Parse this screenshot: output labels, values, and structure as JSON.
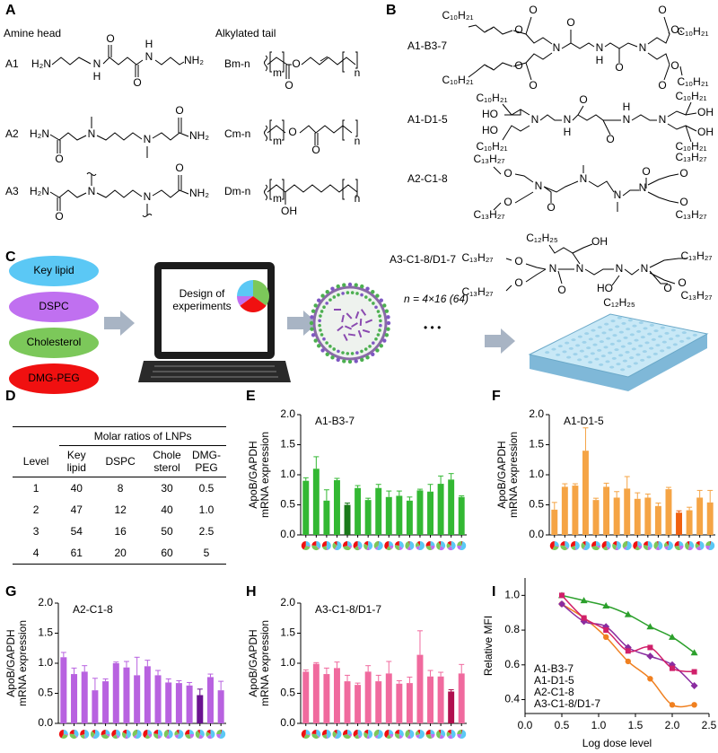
{
  "panel_a": {
    "label": "A",
    "head_title": "Amine head",
    "tail_title": "Alkylated tail",
    "heads": [
      {
        "name": "A1",
        "atoms": [
          "H₂N",
          "N",
          "H",
          "O",
          "O",
          "N",
          "H",
          "NH₂"
        ]
      },
      {
        "name": "A2",
        "atoms": [
          "H₂N",
          "O",
          "N",
          "N",
          "O",
          "NH₂"
        ]
      },
      {
        "name": "A3",
        "atoms": [
          "H₂N",
          "O",
          "N",
          "N",
          "O",
          "NH₂"
        ]
      }
    ],
    "tails": [
      {
        "name": "Bm-n",
        "atoms": [
          "m",
          "O",
          "O",
          "n"
        ]
      },
      {
        "name": "Cm-n",
        "atoms": [
          "m",
          "O",
          "O",
          "n"
        ]
      },
      {
        "name": "Dm-n",
        "atoms": [
          "m",
          "OH",
          "n"
        ]
      }
    ]
  },
  "panel_b": {
    "label": "B",
    "lipids": [
      {
        "name": "A1-B3-7",
        "color": "#2ca02c",
        "atoms": [
          "C₁₀H₂₁",
          "O",
          "O",
          "N",
          "O",
          "N",
          "H",
          "O",
          "N",
          "O",
          "O",
          "C₁₀H₂₁",
          "O",
          "O",
          "C₁₀H₂₁",
          "O",
          "O",
          "C₁₀H₂₁"
        ]
      },
      {
        "name": "A1-D1-5",
        "color": "#f08020",
        "atoms": [
          "C₁₀H₂₁",
          "HO",
          "N",
          "HO",
          "C₁₀H₂₁",
          "N",
          "H",
          "O",
          "O",
          "N",
          "H",
          "N",
          "OH",
          "OH",
          "C₁₀H₂₁",
          "C₁₀H₂₁"
        ]
      },
      {
        "name": "A2-C1-8",
        "color": "#8a2ca0",
        "atoms": [
          "C₁₃H₂₇",
          "O",
          "N",
          "O",
          "C₁₃H₂₇",
          "O",
          "N",
          "N",
          "O",
          "N",
          "O",
          "C₁₃H₂₇",
          "O",
          "C₁₃H₂₇"
        ]
      },
      {
        "name": "A3-C1-8/D1-7",
        "color": "#d0206a",
        "atoms": [
          "C₁₂H₂₅",
          "OH",
          "C₁₃H₂₇",
          "O",
          "N",
          "O",
          "C₁₃H₂₇",
          "O",
          "N",
          "N",
          "HO",
          "C₁₂H₂₅",
          "N",
          "O",
          "C₁₃H₂₇",
          "O",
          "C₁₃H₂₇"
        ]
      }
    ]
  },
  "panel_c": {
    "label": "C",
    "components": [
      "Key lipid",
      "DSPC",
      "Cholesterol",
      "DMG-PEG"
    ],
    "screen_text": "Design of experiments",
    "count_text": "n = 4×16 (64)",
    "ellipsis": "• • •"
  },
  "panel_d": {
    "label": "D",
    "group_header": "Molar ratios of LNPs",
    "columns": [
      "Level",
      "Key lipid",
      "DSPC",
      "Chole sterol",
      "DMG-PEG"
    ],
    "rows": [
      [
        "1",
        "40",
        "8",
        "30",
        "0.5"
      ],
      [
        "2",
        "47",
        "12",
        "40",
        "1.0"
      ],
      [
        "3",
        "54",
        "16",
        "50",
        "2.5"
      ],
      [
        "4",
        "61",
        "20",
        "60",
        "5"
      ]
    ]
  },
  "chart_data": [
    {
      "type": "bar",
      "label": "E",
      "title": "A1-B3-7",
      "y_label": [
        "ApoB/GAPDH",
        "mRNA expression"
      ],
      "color": "#2ca02c",
      "categories": [
        null,
        null,
        null,
        null,
        null,
        null,
        null,
        null,
        null,
        null,
        null,
        null,
        null,
        null,
        null,
        null
      ],
      "values": [
        0.9,
        1.1,
        0.57,
        0.91,
        0.5,
        0.78,
        0.58,
        0.78,
        0.63,
        0.65,
        0.57,
        0.74,
        0.72,
        0.85,
        0.92,
        0.63
      ],
      "errors": [
        0.05,
        0.2,
        0.18,
        0.03,
        0.03,
        0.04,
        0.03,
        0.06,
        0.1,
        0.08,
        0.06,
        0.02,
        0.12,
        0.13,
        0.1,
        0.02
      ],
      "colors": [
        "#33b833",
        "#33b833",
        "#33b833",
        "#33b833",
        "#1a7a1a",
        "#33b833",
        "#33b833",
        "#33b833",
        "#33b833",
        "#33b833",
        "#33b833",
        "#33b833",
        "#33b833",
        "#33b833",
        "#33b833",
        "#33b833"
      ],
      "ylim": [
        0,
        2
      ],
      "yticks": [
        {
          "value": 0,
          "label": "0.0"
        },
        {
          "value": 0.5,
          "label": "0.5"
        },
        {
          "value": 1,
          "label": "1.0"
        },
        {
          "value": 1.5,
          "label": "1.5"
        },
        {
          "value": 2,
          "label": "2.0"
        }
      ]
    },
    {
      "type": "bar",
      "label": "F",
      "title": "A1-D1-5",
      "y_label": [
        "ApoB/GAPDH",
        "mRNA expression"
      ],
      "color": "#f08020",
      "categories": [
        null,
        null,
        null,
        null,
        null,
        null,
        null,
        null,
        null,
        null,
        null,
        null,
        null,
        null,
        null,
        null
      ],
      "values": [
        0.42,
        0.8,
        0.82,
        1.4,
        0.58,
        0.8,
        0.62,
        0.77,
        0.6,
        0.62,
        0.48,
        0.76,
        0.37,
        0.41,
        0.62,
        0.54
      ],
      "errors": [
        0.12,
        0.05,
        0.03,
        0.38,
        0.03,
        0.06,
        0.1,
        0.2,
        0.1,
        0.06,
        0.05,
        0.03,
        0.03,
        0.05,
        0.12,
        0.2
      ],
      "colors": [
        "#f5a445",
        "#f5a445",
        "#f5a445",
        "#f5a445",
        "#f5a445",
        "#f5a445",
        "#f5a445",
        "#f5a445",
        "#f5a445",
        "#f5a445",
        "#f5a445",
        "#f5a445",
        "#f06010",
        "#f5a445",
        "#f5a445",
        "#f5a445"
      ],
      "ylim": [
        0,
        2
      ],
      "yticks": [
        {
          "value": 0,
          "label": "0.0"
        },
        {
          "value": 0.5,
          "label": "0.5"
        },
        {
          "value": 1,
          "label": "1.0"
        },
        {
          "value": 1.5,
          "label": "1.5"
        },
        {
          "value": 2,
          "label": "2.0"
        }
      ]
    },
    {
      "type": "bar",
      "label": "G",
      "title": "A2-C1-8",
      "y_label": [
        "ApoB/GAPDH",
        "mRNA expression"
      ],
      "color": "#8a2ca0",
      "categories": [
        null,
        null,
        null,
        null,
        null,
        null,
        null,
        null,
        null,
        null,
        null,
        null,
        null,
        null,
        null,
        null
      ],
      "values": [
        1.1,
        0.82,
        0.86,
        0.55,
        0.7,
        1.0,
        0.93,
        0.8,
        0.95,
        0.8,
        0.68,
        0.67,
        0.63,
        0.47,
        0.77,
        0.55
      ],
      "errors": [
        0.08,
        0.1,
        0.1,
        0.2,
        0.04,
        0.02,
        0.1,
        0.3,
        0.1,
        0.08,
        0.06,
        0.04,
        0.05,
        0.1,
        0.05,
        0.15
      ],
      "colors": [
        "#b862e0",
        "#b862e0",
        "#b862e0",
        "#b862e0",
        "#b862e0",
        "#b862e0",
        "#b862e0",
        "#b862e0",
        "#b862e0",
        "#b862e0",
        "#b862e0",
        "#b862e0",
        "#b862e0",
        "#6a1290",
        "#b862e0",
        "#b862e0"
      ],
      "ylim": [
        0,
        2
      ],
      "yticks": [
        {
          "value": 0,
          "label": "0.0"
        },
        {
          "value": 0.5,
          "label": "0.5"
        },
        {
          "value": 1,
          "label": "1.0"
        },
        {
          "value": 1.5,
          "label": "1.5"
        },
        {
          "value": 2,
          "label": "2.0"
        }
      ]
    },
    {
      "type": "bar",
      "label": "H",
      "title": "A3-C1-8/D1-7",
      "y_label": [
        "ApoB/GAPDH",
        "mRNA expression"
      ],
      "color": "#d0206a",
      "categories": [
        null,
        null,
        null,
        null,
        null,
        null,
        null,
        null,
        null,
        null,
        null,
        null,
        null,
        null,
        null,
        null
      ],
      "values": [
        0.86,
        0.99,
        0.82,
        0.92,
        0.7,
        0.64,
        0.86,
        0.7,
        0.83,
        0.66,
        0.67,
        1.14,
        0.78,
        0.78,
        0.53,
        0.83
      ],
      "errors": [
        0.03,
        0.02,
        0.1,
        0.1,
        0.1,
        0.03,
        0.1,
        0.1,
        0.2,
        0.05,
        0.1,
        0.4,
        0.1,
        0.07,
        0.03,
        0.15
      ],
      "colors": [
        "#f06a9e",
        "#f06a9e",
        "#f06a9e",
        "#f06a9e",
        "#f06a9e",
        "#f06a9e",
        "#f06a9e",
        "#f06a9e",
        "#f06a9e",
        "#f06a9e",
        "#f06a9e",
        "#f06a9e",
        "#f06a9e",
        "#f06a9e",
        "#b0104e",
        "#f06a9e"
      ],
      "ylim": [
        0,
        2
      ],
      "yticks": [
        {
          "value": 0,
          "label": "0.0"
        },
        {
          "value": 0.5,
          "label": "0.5"
        },
        {
          "value": 1,
          "label": "1.0"
        },
        {
          "value": 1.5,
          "label": "1.5"
        },
        {
          "value": 2,
          "label": "2.0"
        }
      ]
    },
    {
      "type": "scatter",
      "label": "I",
      "x_label": "Log dose level",
      "y_label": "Relative MFI",
      "legend": "lower left",
      "x": [
        0.5,
        0.8,
        1.1,
        1.4,
        1.7,
        2.0,
        2.3
      ],
      "series": [
        {
          "name": "A1-B3-7",
          "color": "#2ca02c",
          "marker": "triangle",
          "values": [
            1.0,
            0.97,
            0.94,
            0.89,
            0.82,
            0.76,
            0.67
          ]
        },
        {
          "name": "A1-D1-5",
          "color": "#f08020",
          "marker": "circle",
          "values": [
            0.95,
            0.87,
            0.76,
            0.62,
            0.52,
            0.37,
            0.37
          ]
        },
        {
          "name": "A2-C1-8",
          "color": "#8a2ca0",
          "marker": "diamond",
          "values": [
            0.95,
            0.85,
            0.82,
            0.7,
            0.65,
            0.6,
            0.48
          ]
        },
        {
          "name": "A3-C1-8/D1-7",
          "color": "#d0206a",
          "marker": "square",
          "values": [
            1.0,
            0.87,
            0.8,
            0.68,
            0.7,
            0.58,
            0.56
          ]
        }
      ],
      "xlim": [
        0,
        2.5
      ],
      "xticks": [
        {
          "value": 0,
          "label": "0.0"
        },
        {
          "value": 0.5,
          "label": "0.5"
        },
        {
          "value": 1,
          "label": "1.0"
        },
        {
          "value": 1.5,
          "label": "1.5"
        },
        {
          "value": 2,
          "label": "2.0"
        },
        {
          "value": 2.5,
          "label": "2.5"
        }
      ],
      "ylim": [
        0.32,
        1.1
      ],
      "yticks": [
        0.4,
        0.6,
        0.8,
        {
          "value": 1,
          "label": "1.0"
        }
      ]
    }
  ]
}
